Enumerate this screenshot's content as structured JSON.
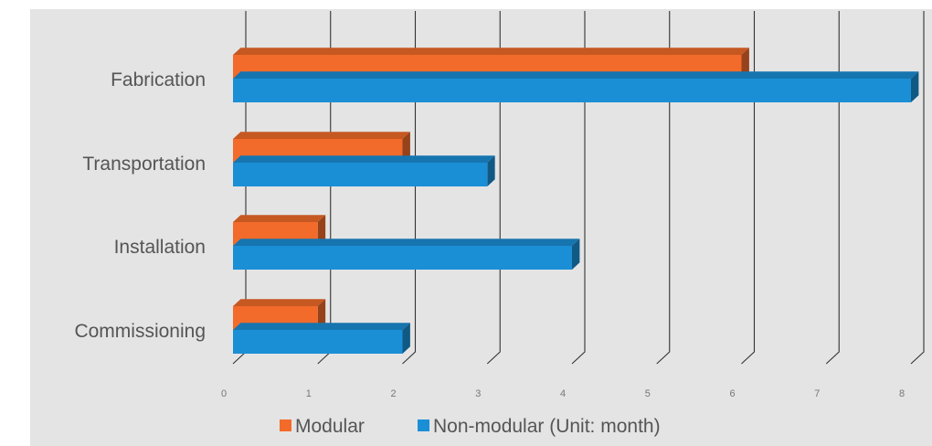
{
  "chart_data": {
    "type": "bar",
    "orientation": "horizontal",
    "three_d": true,
    "categories": [
      "Fabrication",
      "Transportation",
      "Installation",
      "Commissioning"
    ],
    "series": [
      {
        "name": "Modular",
        "values": [
          6,
          2,
          1,
          1
        ],
        "color": "#f26b2a"
      },
      {
        "name": "Non-modular (Unit: month)",
        "values": [
          8,
          3,
          4,
          2
        ],
        "color": "#1b8fd6"
      }
    ],
    "xlim": [
      0,
      8
    ],
    "x_ticks": [
      "0",
      "1",
      "2",
      "3",
      "4",
      "5",
      "6",
      "7",
      "8"
    ],
    "grid": true,
    "legend_position": "bottom",
    "background": "#e4e4e4"
  }
}
